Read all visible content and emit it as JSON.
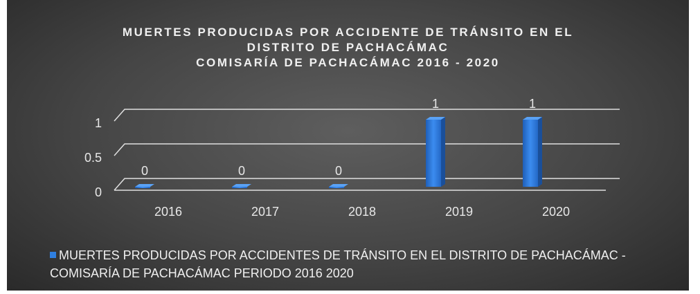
{
  "chart_data": {
    "type": "bar",
    "title": [
      "MUERTES PRODUCIDAS POR ACCIDENTE DE TRÁNSITO EN EL DISTRITO DE PACHACÁMAC",
      "COMISARÍA DE PACHACÁMAC 2016 - 2020"
    ],
    "categories": [
      "2016",
      "2017",
      "2018",
      "2019",
      "2020"
    ],
    "series": [
      {
        "name": "MUERTES PRODUCIDAS POR ACCIDENTES DE TRÁNSITO EN EL DISTRITO DE PACHACÁMAC - COMISARÍA DE PACHACÁMAC PERIODO 2016 2020",
        "color": "#2f7fe0",
        "values": [
          0,
          0,
          0,
          1,
          1
        ]
      }
    ],
    "ylim": [
      0,
      1
    ],
    "yticks": [
      0,
      0.5,
      1
    ],
    "grid": true,
    "legend": "bottom"
  }
}
